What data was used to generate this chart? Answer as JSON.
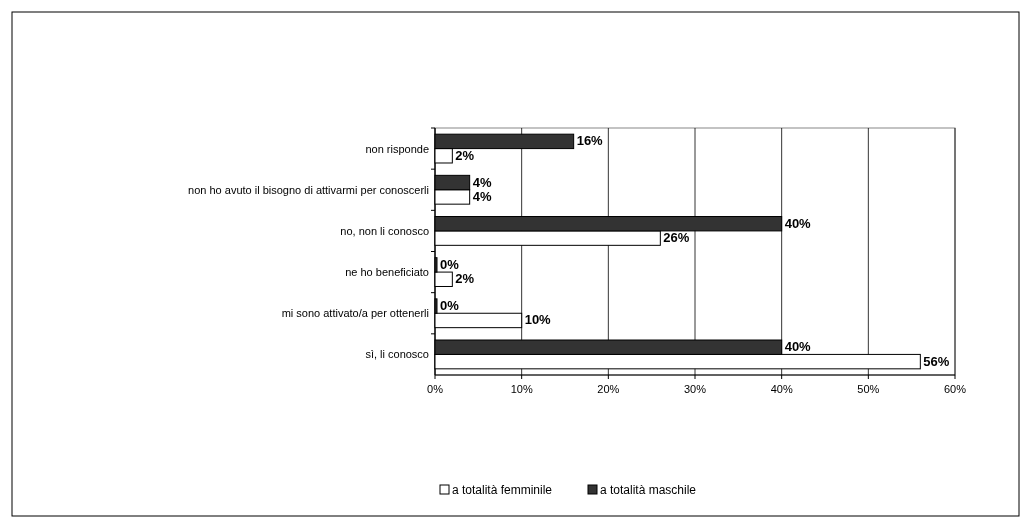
{
  "chart_data": {
    "type": "bar",
    "orientation": "horizontal",
    "categories": [
      "non risponde",
      "non ho avuto il bisogno di attivarmi per conoscerli",
      "no, non li conosco",
      "ne ho beneficiato",
      "mi sono attivato/a per ottenerli",
      "sì, li conosco"
    ],
    "series": [
      {
        "name": "a totalità femminile",
        "color": "#ffffff",
        "values": [
          2,
          4,
          26,
          2,
          10,
          56
        ],
        "value_labels": [
          "2%",
          "4%",
          "26%",
          "2%",
          "10%",
          "56%"
        ]
      },
      {
        "name": "a totalità maschile",
        "color": "#333333",
        "values": [
          16,
          4,
          40,
          0,
          0,
          40
        ],
        "value_labels": [
          "16%",
          "4%",
          "40%",
          "0%",
          "0%",
          "40%"
        ]
      }
    ],
    "xlim": [
      0,
      60
    ],
    "xticks": [
      {
        "value": 0,
        "label": "0%"
      },
      {
        "value": 10,
        "label": "10%"
      },
      {
        "value": 20,
        "label": "20%"
      },
      {
        "value": 30,
        "label": "30%"
      },
      {
        "value": 40,
        "label": "40%"
      },
      {
        "value": 50,
        "label": "50%"
      },
      {
        "value": 60,
        "label": "60%"
      }
    ],
    "grid": "x",
    "legend": "bottom"
  }
}
